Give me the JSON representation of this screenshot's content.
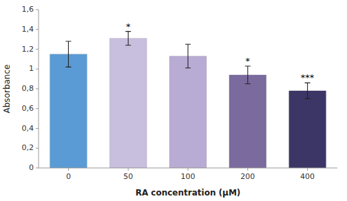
{
  "chart_data": {
    "type": "bar",
    "categories": [
      "0",
      "50",
      "100",
      "200",
      "400"
    ],
    "values": [
      1.15,
      1.31,
      1.13,
      0.94,
      0.78
    ],
    "errors": [
      0.13,
      0.07,
      0.12,
      0.09,
      0.08
    ],
    "colors": [
      "#5b9bd5",
      "#c8bede",
      "#b8acd4",
      "#7b6a9e",
      "#3c3666"
    ],
    "annotations": [
      null,
      "*",
      null,
      "*",
      "***"
    ],
    "xlabel": "RA concentration (μM)",
    "ylabel": "Absorbance",
    "ylim": [
      0,
      1.6
    ],
    "yticks": [
      0,
      {
        "value": 0.2,
        "label": "0,2"
      },
      {
        "value": 0.4,
        "label": "0,4"
      },
      {
        "value": 0.6,
        "label": "0,6"
      },
      {
        "value": 0.8,
        "label": "0,8"
      },
      1,
      {
        "value": 1.2,
        "label": "1,2"
      },
      {
        "value": 1.4,
        "label": "1,4"
      },
      {
        "value": 1.6,
        "label": "1,6"
      }
    ],
    "grid": false
  }
}
